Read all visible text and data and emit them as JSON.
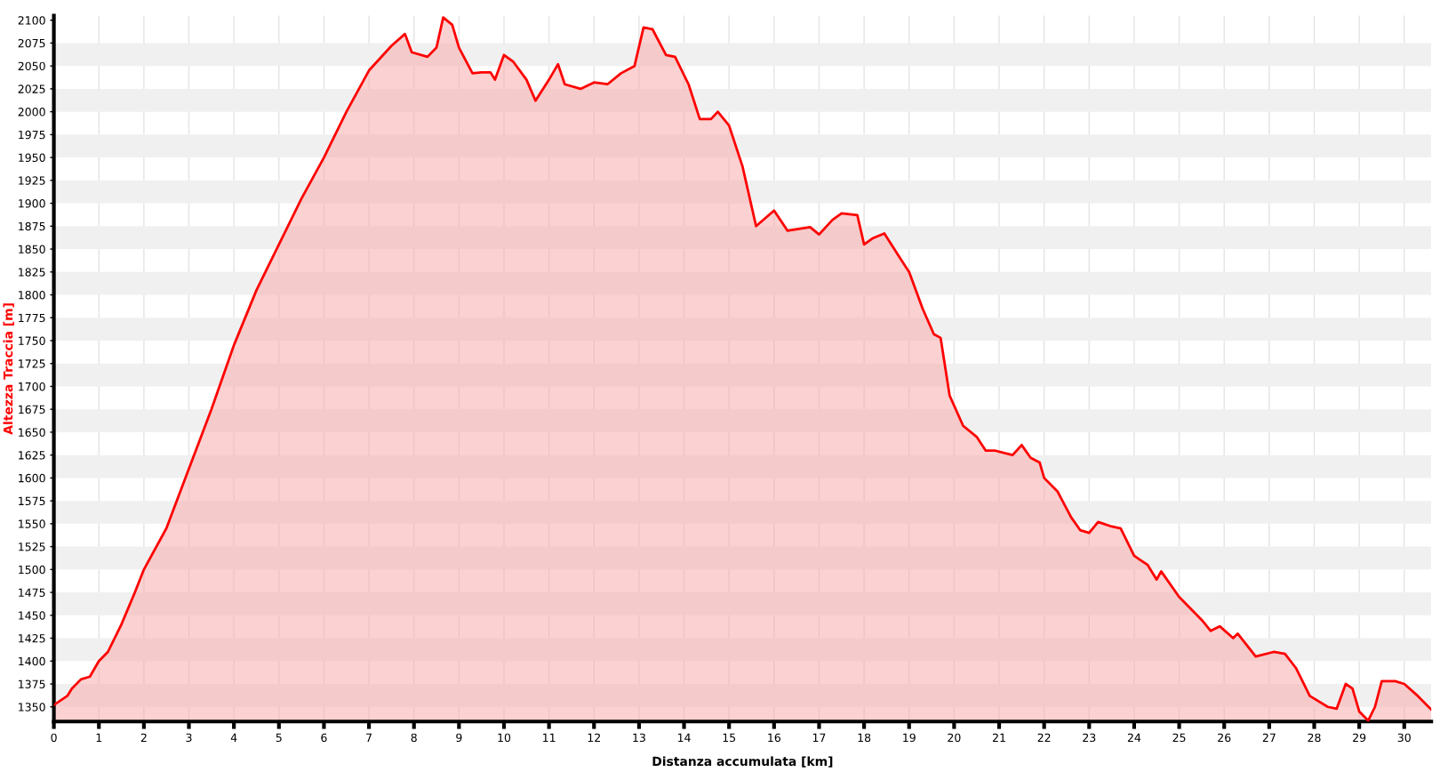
{
  "chart_data": {
    "type": "area",
    "xlabel": "Distanza accumulata [km]",
    "ylabel": "Altezza Traccia [m]",
    "xlim": [
      0,
      30.6
    ],
    "ylim": [
      1334,
      2105
    ],
    "xticks": [
      0,
      1,
      2,
      3,
      4,
      5,
      6,
      7,
      8,
      9,
      10,
      11,
      12,
      13,
      14,
      15,
      16,
      17,
      18,
      19,
      20,
      21,
      22,
      23,
      24,
      25,
      26,
      27,
      28,
      29,
      30
    ],
    "yticks": [
      1350,
      1375,
      1400,
      1425,
      1450,
      1475,
      1500,
      1525,
      1550,
      1575,
      1600,
      1625,
      1650,
      1675,
      1700,
      1725,
      1750,
      1775,
      1800,
      1825,
      1850,
      1875,
      1900,
      1925,
      1950,
      1975,
      2000,
      2025,
      2050,
      2075,
      2100
    ],
    "grid": true,
    "series": [
      {
        "color": "#ff0000",
        "x": [
          0,
          0.3,
          0.4,
          0.6,
          0.8,
          1.0,
          1.2,
          1.5,
          1.8,
          2.0,
          2.5,
          3.0,
          3.5,
          4.0,
          4.5,
          5.0,
          5.5,
          6.0,
          6.5,
          7.0,
          7.5,
          7.8,
          7.95,
          8.3,
          8.5,
          8.65,
          8.85,
          9.0,
          9.3,
          9.5,
          9.7,
          9.8,
          10.0,
          10.2,
          10.5,
          10.7,
          11.0,
          11.2,
          11.35,
          11.7,
          12.0,
          12.3,
          12.6,
          12.9,
          13.1,
          13.3,
          13.6,
          13.8,
          14.1,
          14.35,
          14.6,
          14.75,
          15.0,
          15.3,
          15.6,
          16.0,
          16.3,
          16.8,
          17.0,
          17.3,
          17.5,
          17.85,
          18.0,
          18.2,
          18.45,
          18.8,
          19.0,
          19.3,
          19.55,
          19.7,
          19.9,
          20.2,
          20.5,
          20.7,
          20.9,
          21.3,
          21.5,
          21.7,
          21.9,
          22.0,
          22.3,
          22.6,
          22.8,
          23.0,
          23.2,
          23.5,
          23.7,
          24.0,
          24.15,
          24.3,
          24.5,
          24.6,
          25.0,
          25.5,
          25.7,
          25.9,
          26.2,
          26.3,
          26.7,
          27.1,
          27.35,
          27.6,
          27.9,
          28.3,
          28.5,
          28.7,
          28.85,
          29.0,
          29.2,
          29.35,
          29.5,
          29.8,
          30.0,
          30.3,
          30.6
        ],
        "values": [
          1352,
          1362,
          1370,
          1380,
          1383,
          1400,
          1410,
          1440,
          1475,
          1500,
          1545,
          1610,
          1675,
          1745,
          1805,
          1855,
          1905,
          1950,
          2000,
          2045,
          2072,
          2085,
          2065,
          2060,
          2070,
          2103,
          2095,
          2070,
          2042,
          2043,
          2043,
          2035,
          2062,
          2055,
          2035,
          2012,
          2035,
          2052,
          2030,
          2025,
          2032,
          2030,
          2042,
          2050,
          2092,
          2090,
          2062,
          2060,
          2030,
          1992,
          1992,
          2000,
          1985,
          1940,
          1875,
          1892,
          1870,
          1874,
          1866,
          1882,
          1889,
          1887,
          1855,
          1862,
          1867,
          1840,
          1825,
          1785,
          1757,
          1753,
          1690,
          1657,
          1645,
          1630,
          1630,
          1625,
          1636,
          1622,
          1617,
          1600,
          1585,
          1557,
          1543,
          1540,
          1552,
          1547,
          1545,
          1515,
          1510,
          1505,
          1489,
          1498,
          1470,
          1445,
          1433,
          1438,
          1425,
          1430,
          1405,
          1410,
          1408,
          1392,
          1362,
          1350,
          1348,
          1375,
          1370,
          1345,
          1335,
          1350,
          1378,
          1378,
          1375,
          1362,
          1347
        ]
      }
    ]
  }
}
